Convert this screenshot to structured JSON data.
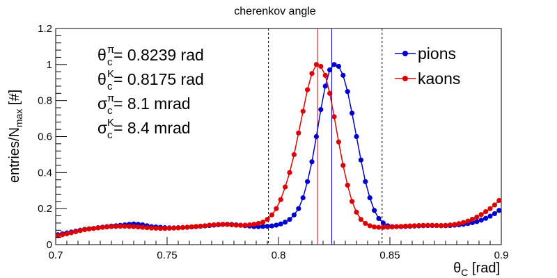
{
  "chart_data": {
    "type": "scatter",
    "title": "cherenkov angle",
    "xlabel": "θ_C [rad]",
    "ylabel": "entries/N_max [#]",
    "xlim": [
      0.7,
      0.9
    ],
    "ylim": [
      0,
      1.2
    ],
    "x_ticks": [
      0.7,
      0.75,
      0.8,
      0.85,
      0.9
    ],
    "y_ticks": [
      0,
      0.2,
      0.4,
      0.6,
      0.8,
      1,
      1.2
    ],
    "x_tick_labels": [
      "0.7",
      "0.75",
      "0.8",
      "0.85",
      "0.9"
    ],
    "y_tick_labels": [
      "0",
      "0.2",
      "0.4",
      "0.6",
      "0.8",
      "1",
      "1.2"
    ],
    "legend": {
      "position": "top-right",
      "entries": [
        "pions",
        "kaons"
      ]
    },
    "annotations": [
      {
        "sym": "θ",
        "sup": "π",
        "sub": "c",
        "text": " = 0.8239 rad"
      },
      {
        "sym": "θ",
        "sup": "K",
        "sub": "c",
        "text": " = 0.8175 rad"
      },
      {
        "sym": "σ",
        "sup": "π",
        "sub": "c",
        "text": " = 8.1 mrad"
      },
      {
        "sym": "σ",
        "sup": "K",
        "sub": "c",
        "text": " = 8.4 mrad"
      }
    ],
    "vertical_lines": [
      {
        "x": 0.7955,
        "style": "dashed",
        "color": "#000000"
      },
      {
        "x": 0.8465,
        "style": "dashed",
        "color": "#000000"
      },
      {
        "x": 0.8175,
        "style": "solid",
        "color": "#cc0000"
      },
      {
        "x": 0.8239,
        "style": "solid",
        "color": "#0000cc"
      }
    ],
    "series": [
      {
        "name": "pions",
        "color": "#0000cc",
        "x": [
          0.701,
          0.703,
          0.705,
          0.707,
          0.709,
          0.711,
          0.713,
          0.715,
          0.717,
          0.719,
          0.721,
          0.723,
          0.725,
          0.727,
          0.729,
          0.731,
          0.733,
          0.735,
          0.737,
          0.739,
          0.741,
          0.743,
          0.745,
          0.747,
          0.749,
          0.751,
          0.753,
          0.755,
          0.757,
          0.759,
          0.761,
          0.763,
          0.765,
          0.767,
          0.769,
          0.771,
          0.773,
          0.775,
          0.777,
          0.779,
          0.781,
          0.783,
          0.785,
          0.787,
          0.789,
          0.791,
          0.793,
          0.795,
          0.797,
          0.799,
          0.801,
          0.803,
          0.805,
          0.807,
          0.809,
          0.811,
          0.813,
          0.815,
          0.817,
          0.819,
          0.821,
          0.823,
          0.825,
          0.827,
          0.829,
          0.831,
          0.833,
          0.835,
          0.837,
          0.839,
          0.841,
          0.843,
          0.845,
          0.847,
          0.849,
          0.851,
          0.853,
          0.855,
          0.857,
          0.859,
          0.861,
          0.863,
          0.865,
          0.867,
          0.869,
          0.871,
          0.873,
          0.875,
          0.877,
          0.879,
          0.881,
          0.883,
          0.885,
          0.887,
          0.889,
          0.891,
          0.893,
          0.895,
          0.897,
          0.899
        ],
        "y": [
          0.055,
          0.06,
          0.065,
          0.07,
          0.075,
          0.08,
          0.085,
          0.088,
          0.09,
          0.094,
          0.097,
          0.1,
          0.103,
          0.105,
          0.107,
          0.11,
          0.113,
          0.115,
          0.113,
          0.11,
          0.105,
          0.1,
          0.098,
          0.096,
          0.094,
          0.093,
          0.093,
          0.094,
          0.095,
          0.096,
          0.098,
          0.1,
          0.102,
          0.104,
          0.106,
          0.108,
          0.11,
          0.112,
          0.113,
          0.112,
          0.11,
          0.108,
          0.105,
          0.103,
          0.1,
          0.1,
          0.101,
          0.102,
          0.104,
          0.108,
          0.115,
          0.125,
          0.14,
          0.165,
          0.2,
          0.26,
          0.35,
          0.46,
          0.6,
          0.75,
          0.88,
          0.97,
          1.0,
          0.99,
          0.94,
          0.85,
          0.73,
          0.6,
          0.47,
          0.35,
          0.26,
          0.19,
          0.145,
          0.12,
          0.105,
          0.1,
          0.1,
          0.1,
          0.101,
          0.102,
          0.103,
          0.104,
          0.105,
          0.106,
          0.106,
          0.106,
          0.105,
          0.105,
          0.106,
          0.108,
          0.11,
          0.113,
          0.117,
          0.122,
          0.128,
          0.136,
          0.146,
          0.158,
          0.172,
          0.19
        ]
      },
      {
        "name": "kaons",
        "color": "#dd0000",
        "x": [
          0.701,
          0.703,
          0.705,
          0.707,
          0.709,
          0.711,
          0.713,
          0.715,
          0.717,
          0.719,
          0.721,
          0.723,
          0.725,
          0.727,
          0.729,
          0.731,
          0.733,
          0.735,
          0.737,
          0.739,
          0.741,
          0.743,
          0.745,
          0.747,
          0.749,
          0.751,
          0.753,
          0.755,
          0.757,
          0.759,
          0.761,
          0.763,
          0.765,
          0.767,
          0.769,
          0.771,
          0.773,
          0.775,
          0.777,
          0.779,
          0.781,
          0.783,
          0.785,
          0.787,
          0.789,
          0.791,
          0.793,
          0.795,
          0.797,
          0.799,
          0.801,
          0.803,
          0.805,
          0.807,
          0.809,
          0.811,
          0.813,
          0.815,
          0.817,
          0.819,
          0.821,
          0.823,
          0.825,
          0.827,
          0.829,
          0.831,
          0.833,
          0.835,
          0.837,
          0.839,
          0.841,
          0.843,
          0.845,
          0.847,
          0.849,
          0.851,
          0.853,
          0.855,
          0.857,
          0.859,
          0.861,
          0.863,
          0.865,
          0.867,
          0.869,
          0.871,
          0.873,
          0.875,
          0.877,
          0.879,
          0.881,
          0.883,
          0.885,
          0.887,
          0.889,
          0.891,
          0.893,
          0.895,
          0.897,
          0.899
        ],
        "y": [
          0.05,
          0.055,
          0.06,
          0.066,
          0.072,
          0.078,
          0.083,
          0.087,
          0.09,
          0.093,
          0.096,
          0.098,
          0.1,
          0.101,
          0.102,
          0.102,
          0.101,
          0.1,
          0.098,
          0.096,
          0.094,
          0.092,
          0.091,
          0.09,
          0.09,
          0.091,
          0.092,
          0.093,
          0.095,
          0.097,
          0.099,
          0.101,
          0.103,
          0.105,
          0.108,
          0.11,
          0.112,
          0.113,
          0.112,
          0.11,
          0.108,
          0.107,
          0.108,
          0.11,
          0.113,
          0.118,
          0.125,
          0.14,
          0.165,
          0.2,
          0.25,
          0.32,
          0.4,
          0.5,
          0.62,
          0.74,
          0.86,
          0.95,
          1.0,
          0.99,
          0.94,
          0.84,
          0.71,
          0.57,
          0.44,
          0.33,
          0.24,
          0.18,
          0.14,
          0.118,
          0.105,
          0.098,
          0.096,
          0.096,
          0.097,
          0.098,
          0.1,
          0.101,
          0.103,
          0.104,
          0.105,
          0.106,
          0.107,
          0.107,
          0.107,
          0.106,
          0.106,
          0.107,
          0.109,
          0.112,
          0.117,
          0.123,
          0.131,
          0.141,
          0.153,
          0.167,
          0.183,
          0.2,
          0.22,
          0.245
        ]
      }
    ]
  }
}
